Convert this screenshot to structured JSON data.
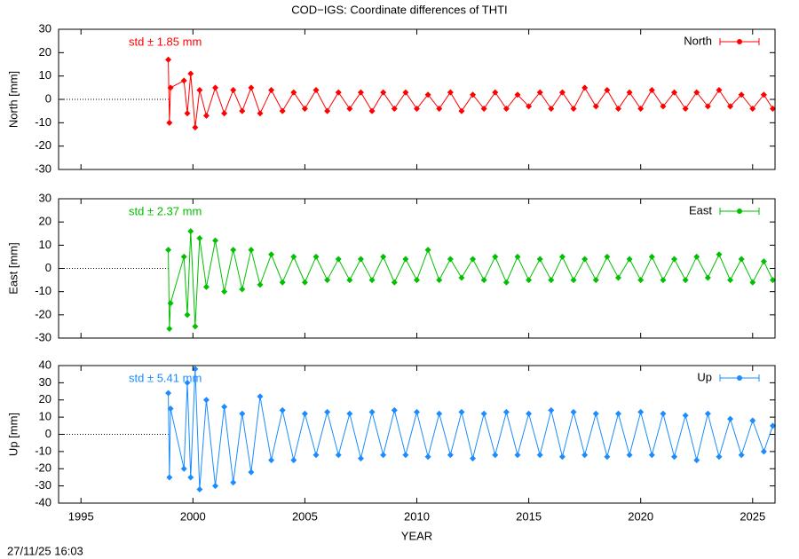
{
  "title": "COD−IGS: Coordinate differences of THTI",
  "footer": "27/11/25 16:03",
  "chart_data": [
    {
      "type": "scatter",
      "ylabel": "North [mm]",
      "annotation": "std ± 1.85 mm",
      "x": [
        1998.9,
        1998.95,
        1999.0,
        1999.6,
        1999.75,
        1999.9,
        2000.1,
        2000.3,
        2000.6,
        2001.0,
        2001.4,
        2001.8,
        2002.2,
        2002.6,
        2003.0,
        2003.5,
        2004.0,
        2004.5,
        2005.0,
        2005.5,
        2006.0,
        2006.5,
        2007.0,
        2007.5,
        2008.0,
        2008.5,
        2009.0,
        2009.5,
        2010.0,
        2010.5,
        2011.0,
        2011.5,
        2012.0,
        2012.5,
        2013.0,
        2013.5,
        2014.0,
        2014.5,
        2015.0,
        2015.5,
        2016.0,
        2016.5,
        2017.0,
        2017.5,
        2018.0,
        2018.5,
        2019.0,
        2019.5,
        2020.0,
        2020.5,
        2021.0,
        2021.5,
        2022.0,
        2022.5,
        2023.0,
        2023.5,
        2024.0,
        2024.5,
        2025.0,
        2025.5,
        2025.9
      ],
      "series": [
        {
          "name": "North",
          "color": "#ff0000",
          "values": [
            17,
            -10,
            5,
            8,
            -6,
            11,
            -12,
            4,
            -7,
            5,
            -6,
            4,
            -5,
            5,
            -6,
            4,
            -5,
            3,
            -4,
            4,
            -5,
            3,
            -4,
            3,
            -5,
            3,
            -4,
            3,
            -4,
            2,
            -4,
            3,
            -5,
            2,
            -4,
            3,
            -4,
            2,
            -3,
            3,
            -4,
            3,
            -4,
            5,
            -3,
            4,
            -4,
            3,
            -4,
            4,
            -3,
            3,
            -4,
            3,
            -3,
            4,
            -3,
            2,
            -4,
            2,
            -4
          ]
        }
      ],
      "xlim": [
        1994,
        2026
      ],
      "xticks": [
        1995,
        2000,
        2005,
        2010,
        2015,
        2020,
        2025
      ],
      "ylim": [
        -30,
        30
      ],
      "yticks": [
        -30,
        -20,
        -10,
        0,
        10,
        20,
        30
      ]
    },
    {
      "type": "scatter",
      "ylabel": "East [mm]",
      "annotation": "std ± 2.37 mm",
      "x": [
        1998.9,
        1998.95,
        1999.0,
        1999.6,
        1999.75,
        1999.9,
        2000.1,
        2000.3,
        2000.6,
        2001.0,
        2001.4,
        2001.8,
        2002.2,
        2002.6,
        2003.0,
        2003.5,
        2004.0,
        2004.5,
        2005.0,
        2005.5,
        2006.0,
        2006.5,
        2007.0,
        2007.5,
        2008.0,
        2008.5,
        2009.0,
        2009.5,
        2010.0,
        2010.5,
        2011.0,
        2011.5,
        2012.0,
        2012.5,
        2013.0,
        2013.5,
        2014.0,
        2014.5,
        2015.0,
        2015.5,
        2016.0,
        2016.5,
        2017.0,
        2017.5,
        2018.0,
        2018.5,
        2019.0,
        2019.5,
        2020.0,
        2020.5,
        2021.0,
        2021.5,
        2022.0,
        2022.5,
        2023.0,
        2023.5,
        2024.0,
        2024.5,
        2025.0,
        2025.5,
        2025.9
      ],
      "series": [
        {
          "name": "East",
          "color": "#00c000",
          "values": [
            8,
            -26,
            -15,
            5,
            -20,
            16,
            -25,
            13,
            -8,
            12,
            -10,
            8,
            -9,
            8,
            -7,
            6,
            -6,
            5,
            -6,
            5,
            -5,
            4,
            -5,
            4,
            -5,
            5,
            -6,
            4,
            -5,
            8,
            -5,
            4,
            -4,
            4,
            -5,
            5,
            -6,
            5,
            -5,
            4,
            -5,
            5,
            -5,
            4,
            -5,
            5,
            -4,
            4,
            -5,
            5,
            -5,
            4,
            -5,
            5,
            -4,
            6,
            -5,
            4,
            -6,
            3,
            -5
          ]
        }
      ],
      "xlim": [
        1994,
        2026
      ],
      "xticks": [
        1995,
        2000,
        2005,
        2010,
        2015,
        2020,
        2025
      ],
      "ylim": [
        -30,
        30
      ],
      "yticks": [
        -30,
        -20,
        -10,
        0,
        10,
        20,
        30
      ]
    },
    {
      "type": "scatter",
      "ylabel": "Up [mm]",
      "annotation": "std ± 5.41 mm",
      "xlabel": "YEAR",
      "x": [
        1998.9,
        1998.95,
        1999.0,
        1999.6,
        1999.75,
        1999.9,
        2000.1,
        2000.3,
        2000.6,
        2001.0,
        2001.4,
        2001.8,
        2002.2,
        2002.6,
        2003.0,
        2003.5,
        2004.0,
        2004.5,
        2005.0,
        2005.5,
        2006.0,
        2006.5,
        2007.0,
        2007.5,
        2008.0,
        2008.5,
        2009.0,
        2009.5,
        2010.0,
        2010.5,
        2011.0,
        2011.5,
        2012.0,
        2012.5,
        2013.0,
        2013.5,
        2014.0,
        2014.5,
        2015.0,
        2015.5,
        2016.0,
        2016.5,
        2017.0,
        2017.5,
        2018.0,
        2018.5,
        2019.0,
        2019.5,
        2020.0,
        2020.5,
        2021.0,
        2021.5,
        2022.0,
        2022.5,
        2023.0,
        2023.5,
        2024.0,
        2024.5,
        2025.0,
        2025.5,
        2025.9
      ],
      "series": [
        {
          "name": "Up",
          "color": "#1a8cff",
          "values": [
            24,
            -25,
            15,
            -20,
            30,
            -25,
            38,
            -32,
            20,
            -30,
            16,
            -28,
            12,
            -22,
            22,
            -15,
            14,
            -15,
            12,
            -12,
            13,
            -12,
            12,
            -14,
            13,
            -12,
            14,
            -12,
            13,
            -13,
            12,
            -12,
            13,
            -14,
            12,
            -12,
            13,
            -12,
            12,
            -12,
            14,
            -13,
            13,
            -12,
            12,
            -13,
            12,
            -12,
            13,
            -12,
            12,
            -13,
            11,
            -15,
            12,
            -13,
            9,
            -12,
            8,
            -10,
            5
          ]
        }
      ],
      "xlim": [
        1994,
        2026
      ],
      "xticks": [
        1995,
        2000,
        2005,
        2010,
        2015,
        2020,
        2025
      ],
      "ylim": [
        -40,
        40
      ],
      "yticks": [
        -40,
        -30,
        -20,
        -10,
        0,
        10,
        20,
        30,
        40
      ]
    }
  ]
}
